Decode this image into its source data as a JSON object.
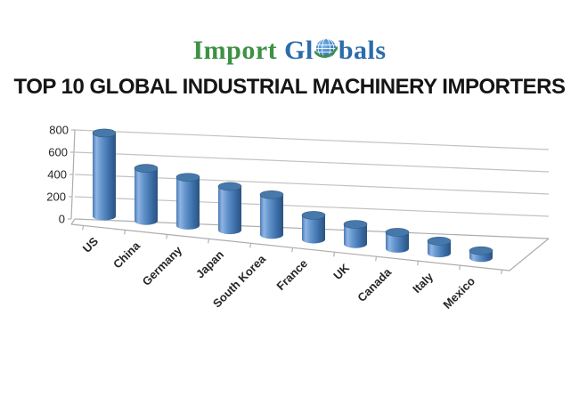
{
  "header": {
    "logo": {
      "text_import": "Import ",
      "text_gl": "Gl",
      "text_bals": "bals",
      "green": "#3c9143",
      "blue": "#2b6cab"
    }
  },
  "title": "TOP 10 GLOBAL INDUSTRIAL MACHINERY IMPORTERS",
  "chart_data": {
    "type": "bar",
    "subtype": "3d-cylinder",
    "title": "",
    "xlabel": "",
    "ylabel": "",
    "categories": [
      "US",
      "China",
      "Germany",
      "Japan",
      "South Korea",
      "France",
      "UK",
      "Canada",
      "Italy",
      "Mexico"
    ],
    "values": [
      780,
      480,
      430,
      380,
      340,
      200,
      160,
      130,
      95,
      55
    ],
    "ylim": [
      0,
      800
    ],
    "yticks": [
      0,
      200,
      400,
      600,
      800
    ],
    "grid": true,
    "legend": "none",
    "bar_color": "#4f81bd",
    "bar_edge_color": "#2b5380",
    "bar_top_color": "#4679ab",
    "gridline_color": "#c2c2c2",
    "axis_color": "#adadad",
    "label_color": "#262626"
  }
}
